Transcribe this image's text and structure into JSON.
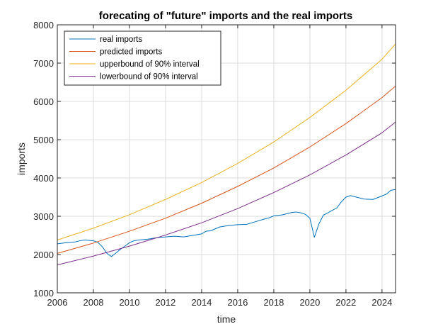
{
  "chart_data": {
    "type": "line",
    "title": "forecating of \"future\" imports and the real imports",
    "xlabel": "time",
    "ylabel": "imports",
    "xlim": [
      2006,
      2024.75
    ],
    "ylim": [
      1000,
      8000
    ],
    "grid": true,
    "legend_position": "top-left",
    "x_ticks": [
      2006,
      2008,
      2010,
      2012,
      2014,
      2016,
      2018,
      2020,
      2022,
      2024
    ],
    "y_ticks": [
      1000,
      2000,
      3000,
      4000,
      5000,
      6000,
      7000,
      8000
    ],
    "series": [
      {
        "name": "real imports",
        "color": "#0072BD",
        "x": [
          2006,
          2006.5,
          2007,
          2007.25,
          2007.5,
          2008,
          2008.25,
          2008.5,
          2008.75,
          2009,
          2009.25,
          2009.5,
          2009.75,
          2010,
          2010.25,
          2010.5,
          2010.75,
          2011,
          2011.5,
          2012,
          2012.5,
          2013,
          2013.5,
          2014,
          2014.25,
          2014.5,
          2015,
          2015.5,
          2016,
          2016.5,
          2017,
          2017.5,
          2017.75,
          2018,
          2018.5,
          2019,
          2019.25,
          2019.5,
          2019.75,
          2020,
          2020.25,
          2020.5,
          2020.75,
          2021,
          2021.5,
          2021.75,
          2022,
          2022.25,
          2022.5,
          2023,
          2023.5,
          2024,
          2024.25,
          2024.5,
          2024.75
        ],
        "values": [
          2280,
          2310,
          2330,
          2360,
          2380,
          2360,
          2320,
          2200,
          2030,
          1950,
          2040,
          2140,
          2220,
          2310,
          2360,
          2380,
          2390,
          2400,
          2440,
          2460,
          2480,
          2460,
          2500,
          2540,
          2610,
          2620,
          2720,
          2760,
          2780,
          2790,
          2860,
          2930,
          2960,
          3010,
          3040,
          3100,
          3110,
          3090,
          3050,
          2950,
          2450,
          2800,
          3030,
          3090,
          3220,
          3380,
          3500,
          3540,
          3510,
          3450,
          3440,
          3530,
          3580,
          3680,
          3700
        ]
      },
      {
        "name": "predicted imports",
        "color": "#D95319",
        "x": [
          2006,
          2008,
          2010,
          2012,
          2014,
          2016,
          2018,
          2020,
          2022,
          2024,
          2024.75
        ],
        "values": [
          2030,
          2300,
          2610,
          2950,
          3340,
          3780,
          4260,
          4810,
          5420,
          6100,
          6400
        ]
      },
      {
        "name": "upperbound of 90% interval",
        "color": "#EDB120",
        "x": [
          2006,
          2008,
          2010,
          2012,
          2014,
          2016,
          2018,
          2020,
          2022,
          2024,
          2024.75
        ],
        "values": [
          2380,
          2690,
          3040,
          3440,
          3880,
          4380,
          4940,
          5580,
          6290,
          7100,
          7500
        ]
      },
      {
        "name": "lowerbound of 90% interval",
        "color": "#7E2F8E",
        "x": [
          2006,
          2008,
          2010,
          2012,
          2014,
          2016,
          2018,
          2020,
          2022,
          2024,
          2024.75
        ],
        "values": [
          1730,
          1960,
          2220,
          2510,
          2830,
          3200,
          3620,
          4080,
          4600,
          5180,
          5460
        ]
      }
    ]
  }
}
